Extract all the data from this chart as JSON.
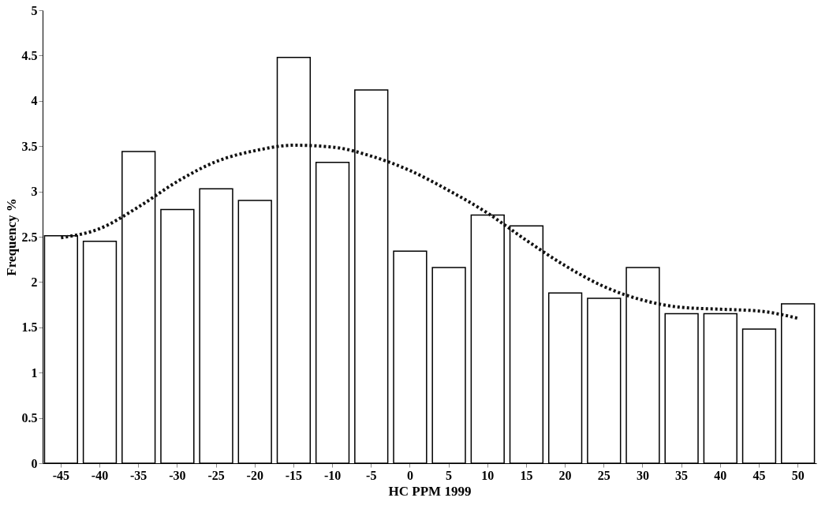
{
  "chart_data": {
    "type": "bar",
    "xlabel": "HC PPM 1999",
    "ylabel": "Frequency %",
    "categories": [
      "-45",
      "-40",
      "-35",
      "-30",
      "-25",
      "-20",
      "-15",
      "-10",
      "-5",
      "0",
      "5",
      "10",
      "15",
      "20",
      "25",
      "30",
      "35",
      "40",
      "45",
      "50"
    ],
    "series": [
      {
        "color": "#ffffff",
        "values": [
          2.51,
          2.45,
          3.44,
          2.8,
          3.03,
          2.9,
          4.48,
          3.32,
          4.12,
          2.34,
          2.16,
          2.74,
          2.62,
          1.88,
          1.82,
          2.16,
          1.65,
          1.65,
          1.48,
          1.76
        ]
      },
      {
        "type": "line",
        "color": "#111111",
        "line_style": "dotted",
        "marker": "none",
        "values": [
          2.49,
          2.59,
          2.83,
          3.11,
          3.33,
          3.45,
          3.51,
          3.49,
          3.39,
          3.23,
          3.01,
          2.76,
          2.46,
          2.18,
          1.95,
          1.8,
          1.72,
          1.7,
          1.68,
          1.6
        ]
      }
    ],
    "ylim": [
      0,
      5
    ],
    "yticks": [
      0,
      0.5,
      1,
      1.5,
      2,
      2.5,
      3,
      3.5,
      4,
      4.5,
      5
    ]
  }
}
